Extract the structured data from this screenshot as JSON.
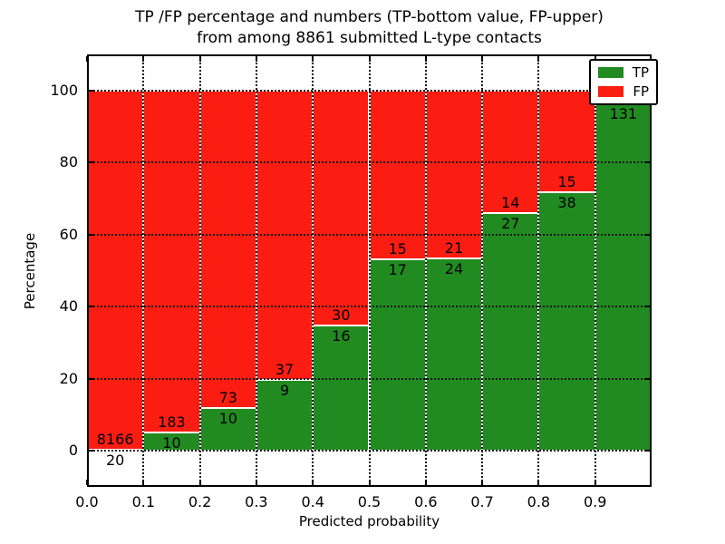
{
  "chart_data": {
    "type": "bar",
    "stacked": true,
    "title_line1": "TP /FP percentage and numbers (TP-bottom value, FP-upper)",
    "title_line2": "from among 8861 submitted L-type contacts",
    "xlabel": "Predicted probability",
    "ylabel": "Percentage",
    "xlim": [
      0.0,
      1.0
    ],
    "ylim": [
      -10,
      110
    ],
    "x_tick_labels": [
      "0.0",
      "0.1",
      "0.2",
      "0.3",
      "0.4",
      "0.5",
      "0.6",
      "0.7",
      "0.8",
      "0.9"
    ],
    "y_ticks": [
      0,
      20,
      40,
      60,
      80,
      100
    ],
    "grid": "dotted",
    "background_color": "#ffffff",
    "legend_position": "upper right",
    "series": [
      {
        "name": "TP",
        "color": "#218b21"
      },
      {
        "name": "FP",
        "color": "#fc1d12"
      }
    ],
    "bars": [
      {
        "bin_start": "0.0",
        "tp_count": 20,
        "fp_count": 8166,
        "tp_percent": 0.25
      },
      {
        "bin_start": "0.1",
        "tp_count": 10,
        "fp_count": 183,
        "tp_percent": 5.2
      },
      {
        "bin_start": "0.2",
        "tp_count": 10,
        "fp_count": 73,
        "tp_percent": 12.0
      },
      {
        "bin_start": "0.3",
        "tp_count": 9,
        "fp_count": 37,
        "tp_percent": 19.6
      },
      {
        "bin_start": "0.4",
        "tp_count": 16,
        "fp_count": 30,
        "tp_percent": 34.8
      },
      {
        "bin_start": "0.5",
        "tp_count": 17,
        "fp_count": 15,
        "tp_percent": 53.1
      },
      {
        "bin_start": "0.6",
        "tp_count": 24,
        "fp_count": 21,
        "tp_percent": 53.3
      },
      {
        "bin_start": "0.7",
        "tp_count": 27,
        "fp_count": 14,
        "tp_percent": 65.9
      },
      {
        "bin_start": "0.8",
        "tp_count": 38,
        "fp_count": 15,
        "tp_percent": 71.7
      },
      {
        "bin_start": "0.9",
        "tp_count": 131,
        "fp_count": null,
        "tp_percent": 96.3
      }
    ]
  }
}
